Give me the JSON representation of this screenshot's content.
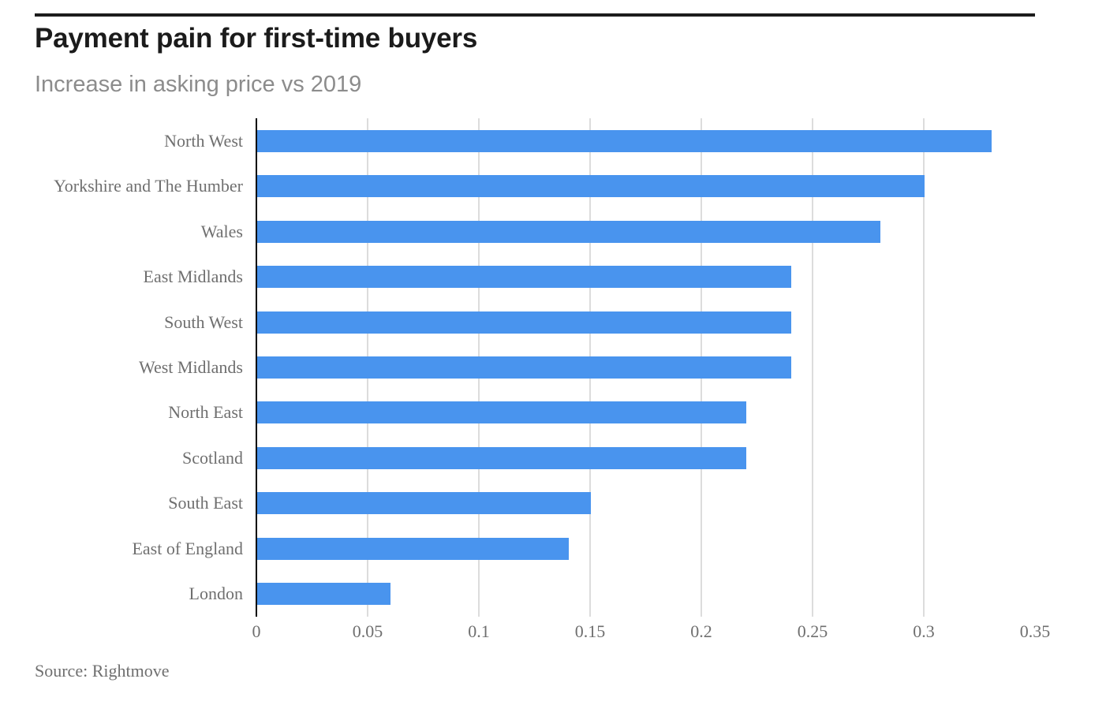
{
  "header": {
    "title": "Payment pain for first-time buyers",
    "subtitle": "Increase in asking price vs 2019"
  },
  "footer": {
    "source": "Source: Rightmove"
  },
  "colors": {
    "bar": "#4994ee",
    "gridline": "#dcdcdc",
    "axis_line": "#000000",
    "title_text": "#1b1b1b",
    "subtitle_text": "#8c8c8c",
    "label_text": "#6f6f6f",
    "top_rule": "#1c1c1c"
  },
  "chart_data": {
    "type": "bar",
    "orientation": "horizontal",
    "title": "Payment pain for first-time buyers",
    "subtitle": "Increase in asking price vs 2019",
    "categories": [
      "North West",
      "Yorkshire and The Humber",
      "Wales",
      "East Midlands",
      "South West",
      "West Midlands",
      "North East",
      "Scotland",
      "South East",
      "East of England",
      "London"
    ],
    "values": [
      0.33,
      0.3,
      0.28,
      0.24,
      0.24,
      0.24,
      0.22,
      0.22,
      0.15,
      0.14,
      0.06
    ],
    "xlabel": "",
    "ylabel": "",
    "xlim": [
      0,
      0.35
    ],
    "xticks": [
      0,
      0.05,
      0.1,
      0.15,
      0.2,
      0.25,
      0.3,
      0.35
    ],
    "xtick_labels": [
      "0",
      "0.05",
      "0.1",
      "0.15",
      "0.2",
      "0.25",
      "0.3",
      "0.35"
    ],
    "grid_ticks": [
      0.05,
      0.1,
      0.15,
      0.2,
      0.25,
      0.3
    ],
    "grid": true,
    "legend": false,
    "bar_color": "#4994ee",
    "source": "Source: Rightmove"
  }
}
